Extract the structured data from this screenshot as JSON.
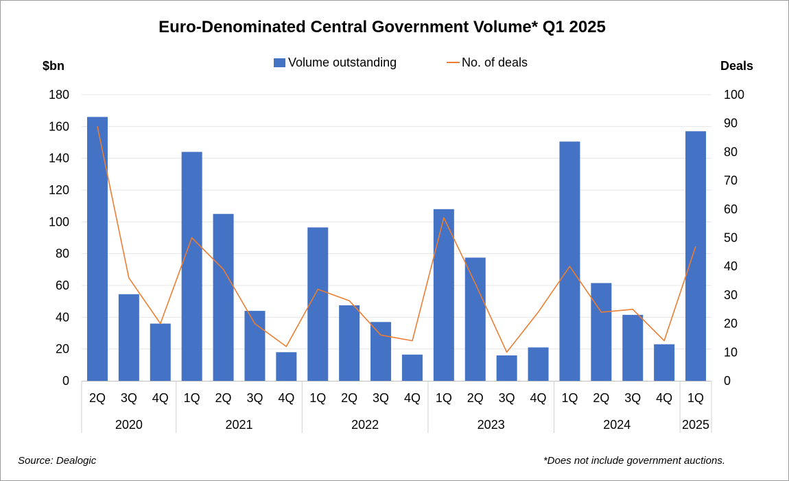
{
  "chart_data": {
    "type": "bar",
    "title": "Euro-Denominated Central Government Volume* Q1 2025",
    "y_left_label": "$bn",
    "y_right_label": "Deals",
    "ylim_left": [
      0,
      180
    ],
    "ylim_right": [
      0,
      100
    ],
    "yticks_left": [
      "0",
      "20",
      "40",
      "60",
      "80",
      "100",
      "120",
      "140",
      "160",
      "180"
    ],
    "yticks_right": [
      "0",
      "10",
      "20",
      "30",
      "40",
      "50",
      "60",
      "70",
      "80",
      "90",
      "100"
    ],
    "categories": [
      "2Q",
      "3Q",
      "4Q",
      "1Q",
      "2Q",
      "3Q",
      "4Q",
      "1Q",
      "2Q",
      "3Q",
      "4Q",
      "1Q",
      "2Q",
      "3Q",
      "4Q",
      "1Q",
      "2Q",
      "3Q",
      "4Q",
      "1Q"
    ],
    "year_groups": [
      {
        "label": "2020",
        "count": 3
      },
      {
        "label": "2021",
        "count": 4
      },
      {
        "label": "2022",
        "count": 4
      },
      {
        "label": "2023",
        "count": 4
      },
      {
        "label": "2024",
        "count": 4
      },
      {
        "label": "2025",
        "count": 1
      }
    ],
    "series": [
      {
        "name": "Volume outstanding",
        "kind": "bar",
        "axis": "left",
        "color": "#4472C4",
        "values": [
          166,
          54.5,
          36,
          144,
          105,
          44,
          18,
          96.5,
          47.5,
          37,
          16.5,
          108,
          77.5,
          16,
          21,
          150.5,
          61.5,
          41.5,
          23,
          157
        ]
      },
      {
        "name": "No. of deals",
        "kind": "line",
        "axis": "right",
        "color": "#ED7D31",
        "values": [
          89,
          36,
          20,
          50,
          39,
          20,
          12,
          32,
          28,
          16,
          14,
          57,
          34,
          10,
          24,
          40,
          24,
          25,
          14,
          47
        ]
      }
    ],
    "grid": true,
    "legend_position": "top-center"
  },
  "footer": {
    "source": "Source: Dealogic",
    "note": "*Does not include government auctions."
  }
}
